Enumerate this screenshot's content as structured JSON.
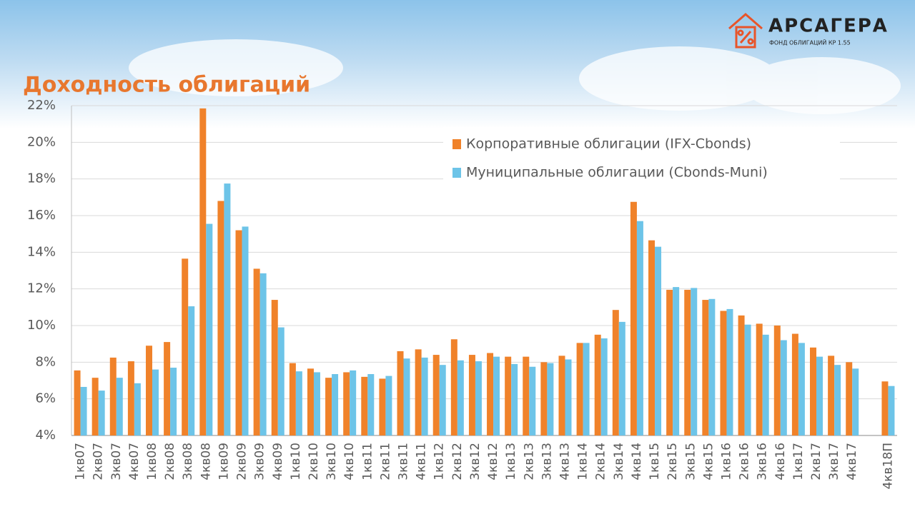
{
  "header": {
    "logo_name": "АРСАГЕРА",
    "logo_subtitle": "ФОНД ОБЛИГАЦИЙ КР 1.55"
  },
  "chart_data": {
    "type": "bar",
    "title": "Доходность облигаций",
    "categories": [
      "1кв07",
      "2кв07",
      "3кв07",
      "4кв07",
      "1кв08",
      "2кв08",
      "3кв08",
      "4кв08",
      "1кв09",
      "2кв09",
      "3кв09",
      "4кв09",
      "1кв10",
      "2кв10",
      "3кв10",
      "4кв10",
      "1кв11",
      "2кв11",
      "3кв11",
      "4кв11",
      "1кв12",
      "2кв12",
      "3кв12",
      "4кв12",
      "1кв13",
      "2кв13",
      "3кв13",
      "4кв13",
      "1кв14",
      "2кв14",
      "3кв14",
      "4кв14",
      "1кв15",
      "2кв15",
      "3кв15",
      "4кв15",
      "1кв16",
      "2кв16",
      "3кв16",
      "4кв16",
      "1кв17",
      "2кв17",
      "3кв17",
      "4кв17",
      null,
      "4кв18П"
    ],
    "series": [
      {
        "name": "Корпоративные облигации (IFX-Cbonds)",
        "color": "#f0822a",
        "values": [
          7.55,
          7.15,
          8.25,
          8.05,
          8.9,
          9.1,
          13.65,
          21.85,
          16.8,
          15.2,
          13.1,
          11.4,
          7.95,
          7.65,
          7.15,
          7.45,
          7.2,
          7.1,
          8.6,
          8.7,
          8.4,
          9.25,
          8.4,
          8.5,
          8.3,
          8.3,
          8.0,
          8.35,
          9.05,
          9.5,
          10.85,
          16.75,
          14.65,
          11.95,
          11.95,
          11.4,
          10.8,
          10.55,
          10.1,
          10.0,
          9.55,
          8.8,
          8.35,
          8.0,
          null,
          6.95
        ]
      },
      {
        "name": "Муниципальные облигации (Cbonds-Muni)",
        "color": "#6dc4e8",
        "values": [
          6.65,
          6.45,
          7.15,
          6.85,
          7.6,
          7.7,
          11.05,
          15.55,
          17.75,
          15.4,
          12.85,
          9.9,
          7.5,
          7.45,
          7.35,
          7.55,
          7.35,
          7.25,
          8.2,
          8.25,
          7.85,
          8.1,
          8.05,
          8.3,
          7.9,
          7.75,
          7.95,
          8.15,
          9.05,
          9.3,
          10.2,
          15.7,
          14.3,
          12.1,
          12.05,
          11.45,
          10.9,
          10.05,
          9.5,
          9.2,
          9.05,
          8.3,
          7.85,
          7.65,
          null,
          6.7
        ]
      }
    ],
    "ylim": [
      4,
      22
    ],
    "yticks": [
      {
        "value": 4,
        "label": "4%"
      },
      {
        "value": 6,
        "label": "6%"
      },
      {
        "value": 8,
        "label": "8%"
      },
      {
        "value": 10,
        "label": "10%"
      },
      {
        "value": 12,
        "label": "12%"
      },
      {
        "value": 14,
        "label": "14%"
      },
      {
        "value": 16,
        "label": "16%"
      },
      {
        "value": 18,
        "label": "18%"
      },
      {
        "value": 20,
        "label": "20%"
      },
      {
        "value": 22,
        "label": "22%"
      }
    ],
    "grid": true
  }
}
